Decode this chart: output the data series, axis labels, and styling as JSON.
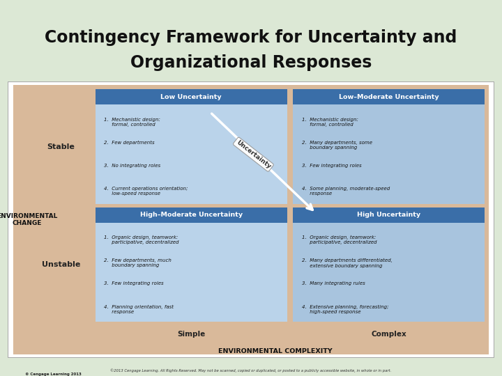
{
  "title_line1": "Contingency Framework for Uncertainty and",
  "title_line2": "Organizational Responses",
  "title_bg": "#dce8d5",
  "title_top_bar": "#5b9bd5",
  "outer_bg": "#d9b99a",
  "inner_bg_light": "#e8d5be",
  "cell_header_bg": "#3a6ea8",
  "cell_body_bg_left": "#bad3ea",
  "cell_body_bg_right": "#a8c4de",
  "bottom_label_bg": "#dce8d5",
  "copyright_bg": "#b8c8d8",
  "quadrants": {
    "top_left": {
      "header": "Low Uncertainty",
      "items": [
        "1.  Mechanistic design:\n     formal, controlled",
        "2.  Few departments",
        "3.  No integrating roles",
        "4.  Current operations orientation;\n     low-speed response"
      ]
    },
    "top_right": {
      "header": "Low–Moderate Uncertainty",
      "items": [
        "1.  Mechanistic design:\n     formal, controlled",
        "2.  Many departments, some\n     boundary spanning",
        "3.  Few integrating roles",
        "4.  Some planning, moderate-speed\n     response"
      ]
    },
    "bottom_left": {
      "header": "High–Moderate Uncertainty",
      "items": [
        "1.  Organic design, teamwork:\n     participative, decentralized",
        "2.  Few departments, much\n     boundary spanning",
        "3.  Few integrating roles",
        "4.  Planning orientation, fast\n     response"
      ]
    },
    "bottom_right": {
      "header": "High Uncertainty",
      "items": [
        "1.  Organic design, teamwork:\n     participative, decentralized",
        "2.  Many departments differentiated,\n     extensive boundary spanning",
        "3.  Many integrating rules",
        "4.  Extensive planning, forecasting;\n     high-speed response"
      ]
    }
  },
  "row_labels": [
    "Stable",
    "Unstable"
  ],
  "col_labels": [
    "Simple",
    "Complex"
  ],
  "x_axis_label": "ENVIRONMENTAL COMPLEXITY",
  "y_axis_label": "ENVIRONMENTAL\nCHANGE",
  "uncertainty_label": "Uncertainty",
  "copyright_text": "©2013 Cengage Learning. All Rights Reserved. May not be scanned, copied or duplicated, or posted to a publicly accessible website, in whole or in part.",
  "copyright_text2": "© Cengage Learning 2013"
}
